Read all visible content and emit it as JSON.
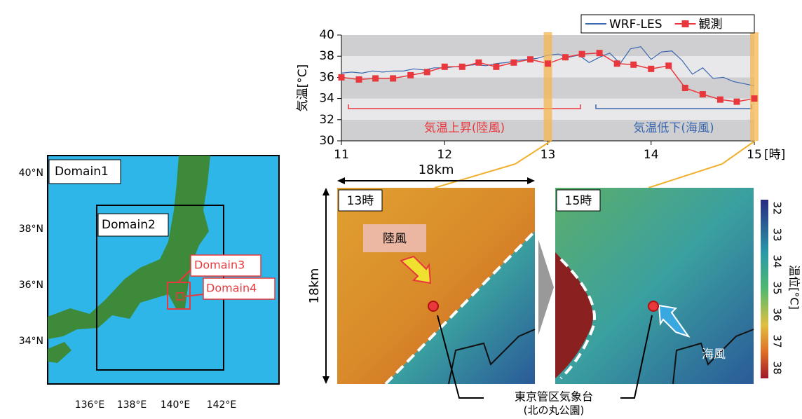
{
  "chart_data": {
    "type": "line",
    "y_label": "気温[°C]",
    "x_unit": "[時]",
    "xlim": [
      11,
      15
    ],
    "xticks": [
      11,
      12,
      13,
      14,
      15
    ],
    "ylim": [
      30,
      40
    ],
    "yticks": [
      30,
      32,
      34,
      36,
      38,
      40
    ],
    "bands": true,
    "legend": "top-right",
    "highlight_x": [
      13,
      15
    ],
    "highlight_color": "#f5b650",
    "annotations": [
      {
        "text": "気温上昇(陸風)",
        "color": "#e8383d"
      },
      {
        "text": "気温低下(海風)",
        "color": "#3a68b0"
      }
    ],
    "series": [
      {
        "name": "WRF-LES",
        "color": "#3a68b0",
        "marker": false,
        "x": [
          11.0,
          11.1,
          11.2,
          11.3,
          11.4,
          11.5,
          11.6,
          11.7,
          11.8,
          11.9,
          12.0,
          12.1,
          12.2,
          12.3,
          12.4,
          12.5,
          12.6,
          12.7,
          12.8,
          12.9,
          13.0,
          13.1,
          13.2,
          13.3,
          13.4,
          13.5,
          13.6,
          13.7,
          13.8,
          13.9,
          14.0,
          14.1,
          14.2,
          14.3,
          14.4,
          14.5,
          14.6,
          14.7,
          14.8,
          14.9,
          15.0
        ],
        "values": [
          36.4,
          36.5,
          36.4,
          36.6,
          36.5,
          36.6,
          36.6,
          36.8,
          36.7,
          36.9,
          36.9,
          37.0,
          37.1,
          37.2,
          37.1,
          37.3,
          37.4,
          37.6,
          37.7,
          37.8,
          38.1,
          38.2,
          37.9,
          38.1,
          37.4,
          37.9,
          38.3,
          37.3,
          38.7,
          38.9,
          37.7,
          38.4,
          38.5,
          37.6,
          36.3,
          36.9,
          35.9,
          36.0,
          35.6,
          35.4,
          35.2
        ]
      },
      {
        "name": "観測",
        "color": "#e8383d",
        "marker": true,
        "x": [
          11.0,
          11.17,
          11.33,
          11.5,
          11.67,
          11.83,
          12.0,
          12.17,
          12.33,
          12.5,
          12.67,
          12.83,
          13.0,
          13.17,
          13.33,
          13.5,
          13.67,
          13.83,
          14.0,
          14.17,
          14.33,
          14.5,
          14.67,
          14.83,
          15.0
        ],
        "values": [
          36.0,
          35.8,
          35.9,
          35.9,
          36.2,
          36.5,
          37.0,
          37.0,
          37.4,
          37.0,
          37.4,
          37.7,
          37.3,
          37.9,
          38.2,
          38.3,
          37.3,
          37.2,
          36.8,
          37.1,
          35.0,
          34.4,
          33.9,
          33.7,
          34.0
        ]
      }
    ]
  },
  "map": {
    "lat_labels": [
      "40°N",
      "38°N",
      "36°N",
      "34°N"
    ],
    "lon_labels": [
      "136°E",
      "138°E",
      "140°E",
      "142°E"
    ],
    "domains": [
      "Domain1",
      "Domain2",
      "Domain3",
      "Domain4"
    ]
  },
  "panels": {
    "size_label": "18km",
    "times": [
      "13時",
      "15時"
    ],
    "land_breeze": "陸風",
    "sea_breeze": "海風",
    "station": [
      "東京管区気象台",
      "(北の丸公園)"
    ],
    "colorbar": {
      "label": "温位[°C]",
      "ticks": [
        32,
        33,
        34,
        35,
        36,
        37,
        38
      ]
    }
  }
}
